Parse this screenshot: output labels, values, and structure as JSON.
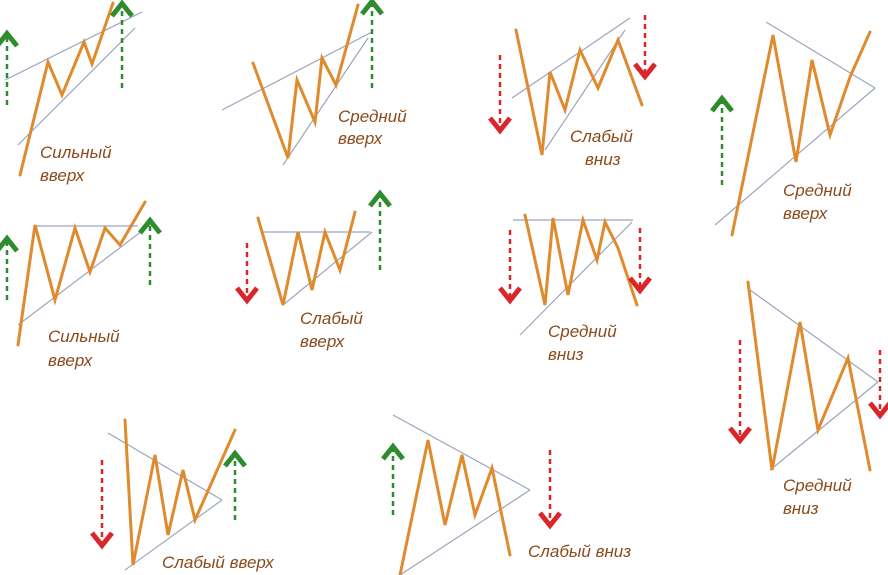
{
  "colors": {
    "zigzag": "#e08a2e",
    "trendline": "#9aa6bd",
    "up_arrow": "#2e8b2e",
    "down_arrow": "#d9262b",
    "label": "#8a4a1c"
  },
  "patterns": [
    {
      "line1": "Сильный",
      "line2": "вверх"
    },
    {
      "line1": "Средний",
      "line2": "вверх"
    },
    {
      "line1": "Слабый",
      "line2": "вниз"
    },
    {
      "line1": "Средний",
      "line2": "вверх"
    },
    {
      "line1": "Сильный",
      "line2": "вверх"
    },
    {
      "line1": "Слабый",
      "line2": "вверх"
    },
    {
      "line1": "Средний",
      "line2": "вниз"
    },
    {
      "line1": "Средний",
      "line2": "вниз"
    },
    {
      "line1": "Слабый вверх"
    },
    {
      "line1": "Слабый вниз"
    }
  ]
}
